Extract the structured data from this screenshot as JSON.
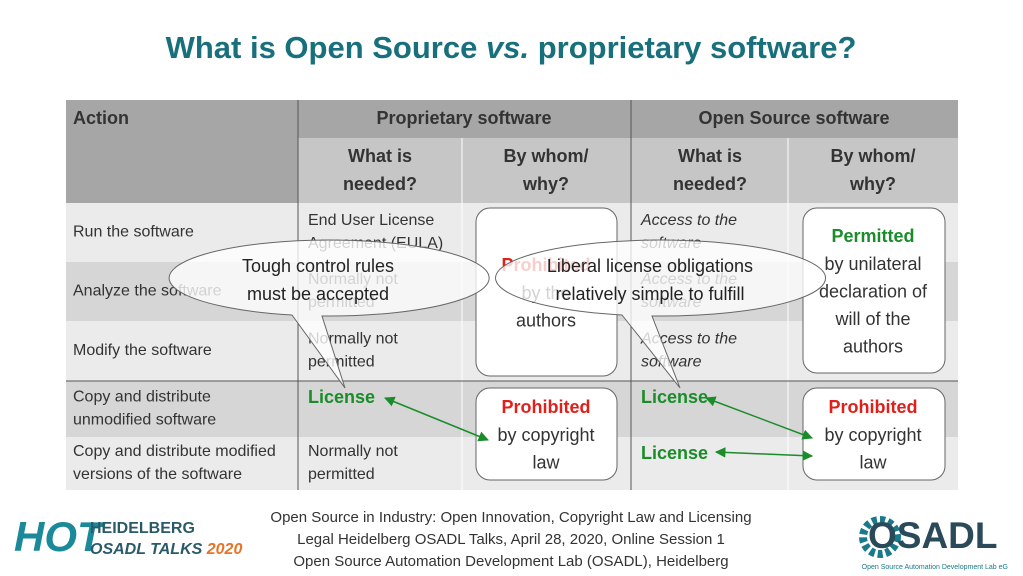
{
  "title": {
    "before": "What is Open Source",
    "em": "vs.",
    "after": "proprietary software?"
  },
  "table": {
    "groups": [
      "Action",
      "Proprietary software",
      "Open Source software"
    ],
    "subheaders": [
      [
        "What is",
        "needed?"
      ],
      [
        "By whom/",
        "why?"
      ],
      [
        "What is",
        "needed?"
      ],
      [
        "By whom/",
        "why?"
      ]
    ],
    "rows": [
      {
        "action": [
          "Run the software"
        ],
        "prop_needed": [
          "End User License",
          "Agreement (EULA)"
        ],
        "os_needed": [
          "Access to the",
          "software"
        ]
      },
      {
        "action": [
          "Analyze the software"
        ],
        "prop_needed": [
          "Normally not",
          "permitted"
        ],
        "os_needed": [
          "Access to the",
          "software"
        ]
      },
      {
        "action": [
          "Modify the software"
        ],
        "prop_needed": [
          "Normally not",
          "permitted"
        ],
        "os_needed": [
          "Access to the",
          "software"
        ]
      },
      {
        "action": [
          "Copy and distribute",
          "unmodified software"
        ],
        "prop_needed": [
          "License"
        ],
        "os_needed": [
          "License"
        ]
      },
      {
        "action": [
          "Copy and distribute modified",
          "versions of the software"
        ],
        "prop_needed": [
          "Normally not",
          "permitted"
        ],
        "os_needed": [
          "License"
        ]
      }
    ],
    "boxes": [
      {
        "status": "Prohibited",
        "lines": [
          "by the",
          "authors"
        ]
      },
      {
        "status": "Permitted",
        "lines": [
          "by unilateral",
          "declaration of",
          "will of the",
          "authors"
        ]
      },
      {
        "status": "Prohibited",
        "lines": [
          "by copyright",
          "law"
        ]
      },
      {
        "status": "Prohibited",
        "lines": [
          "by copyright",
          "law"
        ]
      }
    ]
  },
  "callouts": [
    [
      "Tough control rules",
      "must be accepted"
    ],
    [
      "Liberal license obligations",
      "relatively simple to fulfill"
    ]
  ],
  "footer": [
    "Open Source in Industry: Open Innovation, Copyright Law and Licensing",
    "Legal Heidelberg OSADL Talks, April 28, 2020, Online Session 1",
    "Open Source Automation Development Lab (OSADL), Heidelberg"
  ],
  "logo_left": {
    "mark": "HOT",
    "line1": "HEIDELBERG",
    "line2": "OSADL TALKS",
    "year": "2020"
  },
  "logo_right": {
    "name": "OSADL",
    "tagline": "Open Source Automation Development Lab eG"
  }
}
